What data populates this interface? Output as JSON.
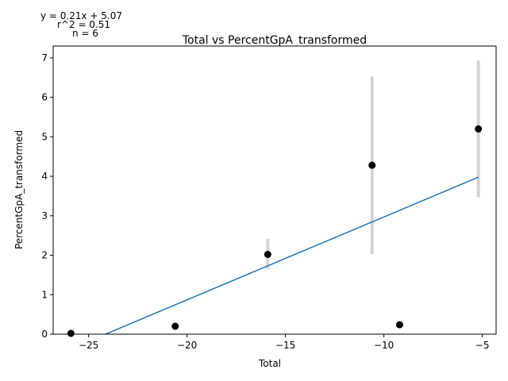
{
  "chart_data": {
    "type": "scatter",
    "title": "Total vs PercentGpA_transformed",
    "xlabel": "Total",
    "ylabel": "PercentGpA_transformed",
    "xlim": [
      -26.8,
      -4.3
    ],
    "ylim": [
      0,
      7.3
    ],
    "xticks": [
      -25,
      -20,
      -15,
      -10,
      -5
    ],
    "yticks": [
      0,
      1,
      2,
      3,
      4,
      5,
      6,
      7
    ],
    "grid": false,
    "points": [
      {
        "x": -25.9,
        "y": 0.02,
        "err_low": null,
        "err_high": null
      },
      {
        "x": -20.6,
        "y": 0.2,
        "err_low": null,
        "err_high": null
      },
      {
        "x": -15.9,
        "y": 2.02,
        "err_low": 1.65,
        "err_high": 2.42
      },
      {
        "x": -10.6,
        "y": 4.28,
        "err_low": 2.03,
        "err_high": 6.53
      },
      {
        "x": -9.2,
        "y": 0.24,
        "err_low": null,
        "err_high": null
      },
      {
        "x": -5.2,
        "y": 5.2,
        "err_low": 3.47,
        "err_high": 6.93
      }
    ],
    "fit": {
      "slope": 0.21,
      "intercept": 5.07,
      "x_range": [
        -26.8,
        -5.2
      ],
      "color": "#1f77b4"
    },
    "marker_color": "#000000",
    "errorbar_color": "#d3d3d3",
    "annotation": {
      "line1": "y = 0.21x + 5.07",
      "line2": "r^2 = 0.51",
      "line3": "n = 6"
    }
  }
}
